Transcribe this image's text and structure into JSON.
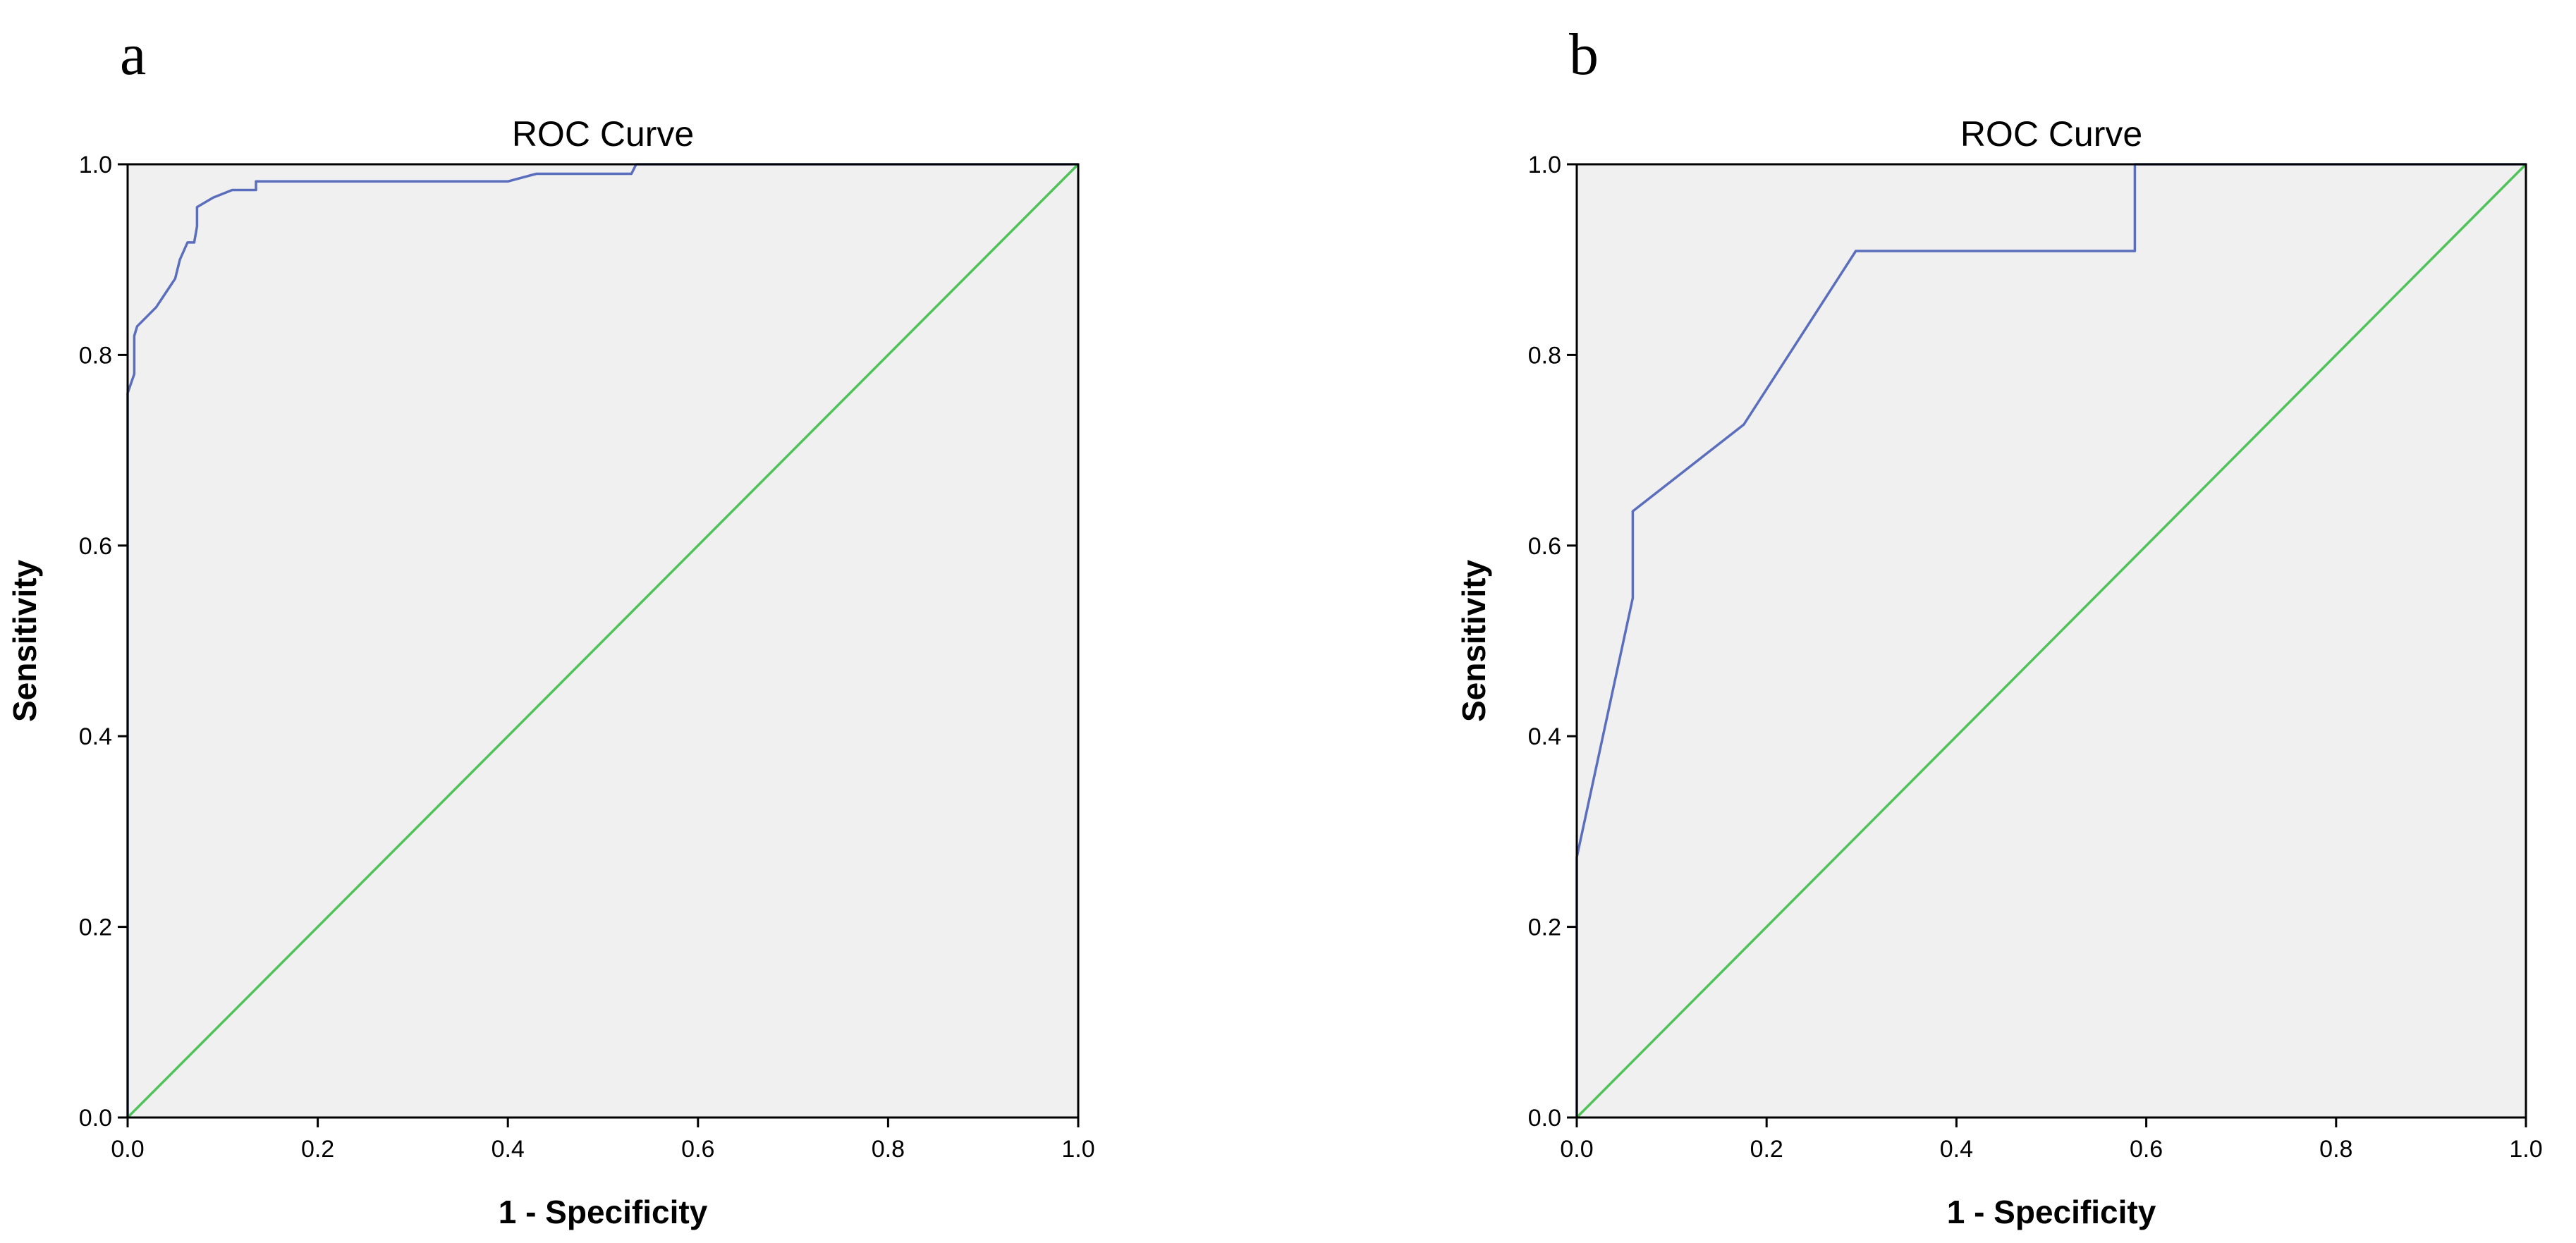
{
  "figure": {
    "background": "#ffffff",
    "plot_background": "#f0f0f0",
    "curve_color": "#5b6ebd",
    "reference_color": "#4fc25a",
    "frame_color": "#000000"
  },
  "chart_data": [
    {
      "panel_label": "a",
      "type": "line",
      "title": "ROC Curve",
      "xlabel": "1 - Specificity",
      "ylabel": "Sensitivity",
      "xlim": [
        0,
        1
      ],
      "ylim": [
        0,
        1
      ],
      "xticks": [
        0.0,
        0.2,
        0.4,
        0.6,
        0.8,
        1.0
      ],
      "yticks": [
        0.0,
        0.2,
        0.4,
        0.6,
        0.8,
        1.0
      ],
      "xtick_labels": [
        "0.0",
        "0.2",
        "0.4",
        "0.6",
        "0.8",
        "1.0"
      ],
      "ytick_labels": [
        "0.0",
        "0.2",
        "0.4",
        "0.6",
        "0.8",
        "1.0"
      ],
      "grid": false,
      "legend": "none",
      "series": [
        {
          "x": [
            0,
            0,
            0.007,
            0.007,
            0.01,
            0.02,
            0.03,
            0.04,
            0.05,
            0.055,
            0.063,
            0.07,
            0.073,
            0.073,
            0.09,
            0.11,
            0.135,
            0.135,
            0.17,
            0.25,
            0.4,
            0.43,
            0.53,
            0.535,
            0.6,
            0.8,
            1.0
          ],
          "y": [
            0,
            0.76,
            0.78,
            0.82,
            0.83,
            0.84,
            0.85,
            0.865,
            0.88,
            0.9,
            0.918,
            0.918,
            0.935,
            0.955,
            0.965,
            0.973,
            0.973,
            0.982,
            0.982,
            0.982,
            0.982,
            0.99,
            0.99,
            1.0,
            1.0,
            1.0,
            1.0
          ]
        },
        {
          "x": [
            0,
            1
          ],
          "y": [
            0,
            1
          ]
        }
      ]
    },
    {
      "panel_label": "b",
      "type": "line",
      "title": "ROC Curve",
      "xlabel": "1 - Specificity",
      "ylabel": "Sensitivity",
      "xlim": [
        0,
        1
      ],
      "ylim": [
        0,
        1
      ],
      "xticks": [
        0.0,
        0.2,
        0.4,
        0.6,
        0.8,
        1.0
      ],
      "yticks": [
        0.0,
        0.2,
        0.4,
        0.6,
        0.8,
        1.0
      ],
      "xtick_labels": [
        "0.0",
        "0.2",
        "0.4",
        "0.6",
        "0.8",
        "1.0"
      ],
      "ytick_labels": [
        "0.0",
        "0.2",
        "0.4",
        "0.6",
        "0.8",
        "1.0"
      ],
      "grid": false,
      "legend": "none",
      "series": [
        {
          "x": [
            0,
            0,
            0.059,
            0.059,
            0.176,
            0.294,
            0.588,
            0.588,
            1.0
          ],
          "y": [
            0,
            0.273,
            0.545,
            0.636,
            0.727,
            0.909,
            0.909,
            1.0,
            1.0
          ]
        },
        {
          "x": [
            0,
            1
          ],
          "y": [
            0,
            1
          ]
        }
      ]
    }
  ]
}
